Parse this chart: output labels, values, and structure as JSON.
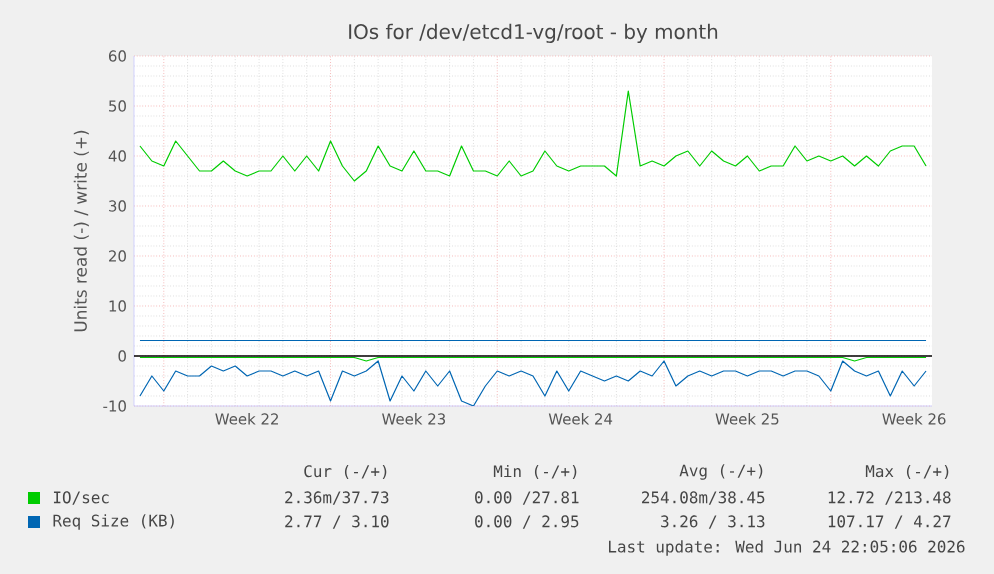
{
  "chart_data": {
    "type": "line",
    "title": "IOs for /dev/etcd1-vg/root - by month",
    "ylabel": "Units read (-) / write (+)",
    "categories": [
      null,
      null,
      null,
      null,
      null,
      null,
      null,
      null,
      null,
      "Week 22",
      null,
      null,
      null,
      null,
      null,
      null,
      null,
      null,
      null,
      null,
      null,
      null,
      null,
      "Week 23",
      null,
      null,
      null,
      null,
      null,
      null,
      null,
      null,
      null,
      null,
      null,
      null,
      null,
      "Week 24",
      null,
      null,
      null,
      null,
      null,
      null,
      null,
      null,
      null,
      null,
      null,
      null,
      null,
      "Week 25",
      null,
      null,
      null,
      null,
      null,
      null,
      null,
      null,
      null,
      null,
      null,
      null,
      null,
      "Week 26",
      null
    ],
    "ylim": [
      -10,
      60
    ],
    "yticks": [
      -10,
      0,
      10,
      20,
      30,
      40,
      50,
      60
    ],
    "grid": true,
    "legend": "bottom",
    "ref_lines": [
      {
        "axis": "y",
        "value": 0,
        "color": "#000000"
      }
    ],
    "series": [
      {
        "name": "IO/sec",
        "color": "#00cc00",
        "values": [
          42,
          39,
          38,
          43,
          40,
          37,
          37,
          39,
          37,
          36,
          37,
          37,
          40,
          37,
          40,
          37,
          43,
          38,
          35,
          37,
          42,
          38,
          37,
          41,
          37,
          37,
          36,
          42,
          37,
          37,
          36,
          39,
          36,
          37,
          41,
          38,
          37,
          38,
          38,
          38,
          36,
          53,
          38,
          39,
          38,
          40,
          41,
          38,
          41,
          39,
          38,
          40,
          37,
          38,
          38,
          42,
          39,
          40,
          39,
          40,
          38,
          40,
          38,
          41,
          42,
          42,
          38
        ]
      },
      {
        "color": "#00cc00",
        "values": [
          -0.3,
          -0.3,
          -0.3,
          -0.3,
          -0.3,
          -0.3,
          -0.3,
          -0.3,
          -0.3,
          -0.3,
          -0.3,
          -0.3,
          -0.3,
          -0.3,
          -0.3,
          -0.3,
          -0.3,
          -0.3,
          -0.3,
          -1,
          -0.3,
          -0.3,
          -0.3,
          -0.3,
          -0.3,
          -0.3,
          -0.3,
          -0.3,
          -0.3,
          -0.3,
          -0.3,
          -0.3,
          -0.3,
          -0.3,
          -0.3,
          -0.3,
          -0.3,
          -0.3,
          -0.3,
          -0.3,
          -0.3,
          -0.3,
          -0.3,
          -0.3,
          -0.3,
          -0.3,
          -0.3,
          -0.3,
          -0.3,
          -0.3,
          -0.3,
          -0.3,
          -0.3,
          -0.3,
          -0.3,
          -0.3,
          -0.3,
          -0.3,
          -0.3,
          -0.3,
          -1,
          -0.3,
          -0.3,
          -0.3,
          -0.3,
          -0.3,
          -0.3
        ]
      },
      {
        "name": "Req Size (KB)",
        "color": "#0066b3",
        "values": [
          3.1,
          3.1,
          3.1,
          3.1,
          3.1,
          3.1,
          3.1,
          3.1,
          3.1,
          3.1,
          3.1,
          3.1,
          3.1,
          3.1,
          3.1,
          3.1,
          3.1,
          3.1,
          3.1,
          3.1,
          3.1,
          3.1,
          3.1,
          3.1,
          3.1,
          3.1,
          3.1,
          3.1,
          3.1,
          3.1,
          3.1,
          3.1,
          3.1,
          3.1,
          3.1,
          3.1,
          3.1,
          3.1,
          3.1,
          3.1,
          3.1,
          3.1,
          3.1,
          3.1,
          3.1,
          3.1,
          3.1,
          3.1,
          3.1,
          3.1,
          3.1,
          3.1,
          3.1,
          3.1,
          3.1,
          3.1,
          3.1,
          3.1,
          3.1,
          3.1,
          3.1,
          3.1,
          3.1,
          3.1,
          3.1,
          3.1,
          3.1
        ]
      },
      {
        "color": "#0066b3",
        "values": [
          -8,
          -4,
          -7,
          -3,
          -4,
          -4,
          -2,
          -3,
          -2,
          -4,
          -3,
          -3,
          -4,
          -3,
          -4,
          -3,
          -9,
          -3,
          -4,
          -3,
          -1,
          -9,
          -4,
          -7,
          -3,
          -6,
          -3,
          -9,
          -10,
          -6,
          -3,
          -4,
          -3,
          -4,
          -8,
          -3,
          -7,
          -3,
          -4,
          -5,
          -4,
          -5,
          -3,
          -4,
          -1,
          -6,
          -4,
          -3,
          -4,
          -3,
          -3,
          -4,
          -3,
          -3,
          -4,
          -3,
          -3,
          -4,
          -7,
          -1,
          -3,
          -4,
          -3,
          -8,
          -3,
          -6,
          -3
        ]
      }
    ],
    "annotations": [
      "Cur (-/+)",
      "Min (-/+)",
      "Avg (-/+)",
      "Max (-/+)",
      "2.36m/37.73",
      "0.00 /27.81",
      "254.08m/38.45",
      "12.72 /213.48",
      "2.77 / 3.10",
      "0.00 / 2.95",
      "3.26 / 3.13",
      "107.17 / 4.27",
      "Last update: Wed Jun 24 22:05:06 2026"
    ]
  }
}
